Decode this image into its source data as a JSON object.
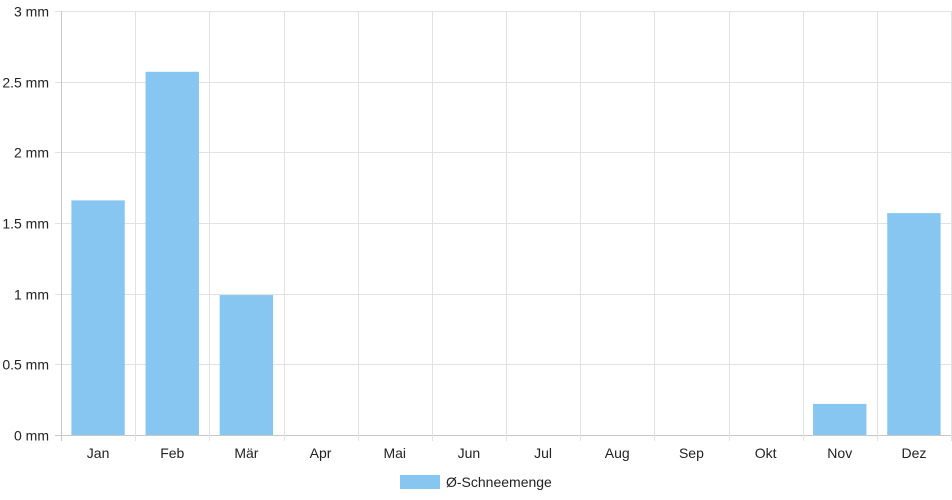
{
  "chart_data": {
    "type": "bar",
    "categories": [
      "Jan",
      "Feb",
      "Mär",
      "Apr",
      "Mai",
      "Jun",
      "Jul",
      "Aug",
      "Sep",
      "Okt",
      "Nov",
      "Dez"
    ],
    "series": [
      {
        "name": "Ø-Schneemenge",
        "values": [
          1.66,
          2.57,
          0.99,
          0,
          0,
          0,
          0,
          0,
          0,
          0,
          0.22,
          1.57
        ]
      }
    ],
    "y_ticks": [
      "0 mm",
      "0.5 mm",
      "1 mm",
      "1.5 mm",
      "2 mm",
      "2.5 mm",
      "3 mm"
    ],
    "ylim": [
      0,
      3
    ],
    "grid": true,
    "legend_position": "bottom",
    "colors": {
      "bar": "#88c6f2",
      "grid": "#e2e2e2",
      "axis": "#c8c8c8"
    }
  }
}
